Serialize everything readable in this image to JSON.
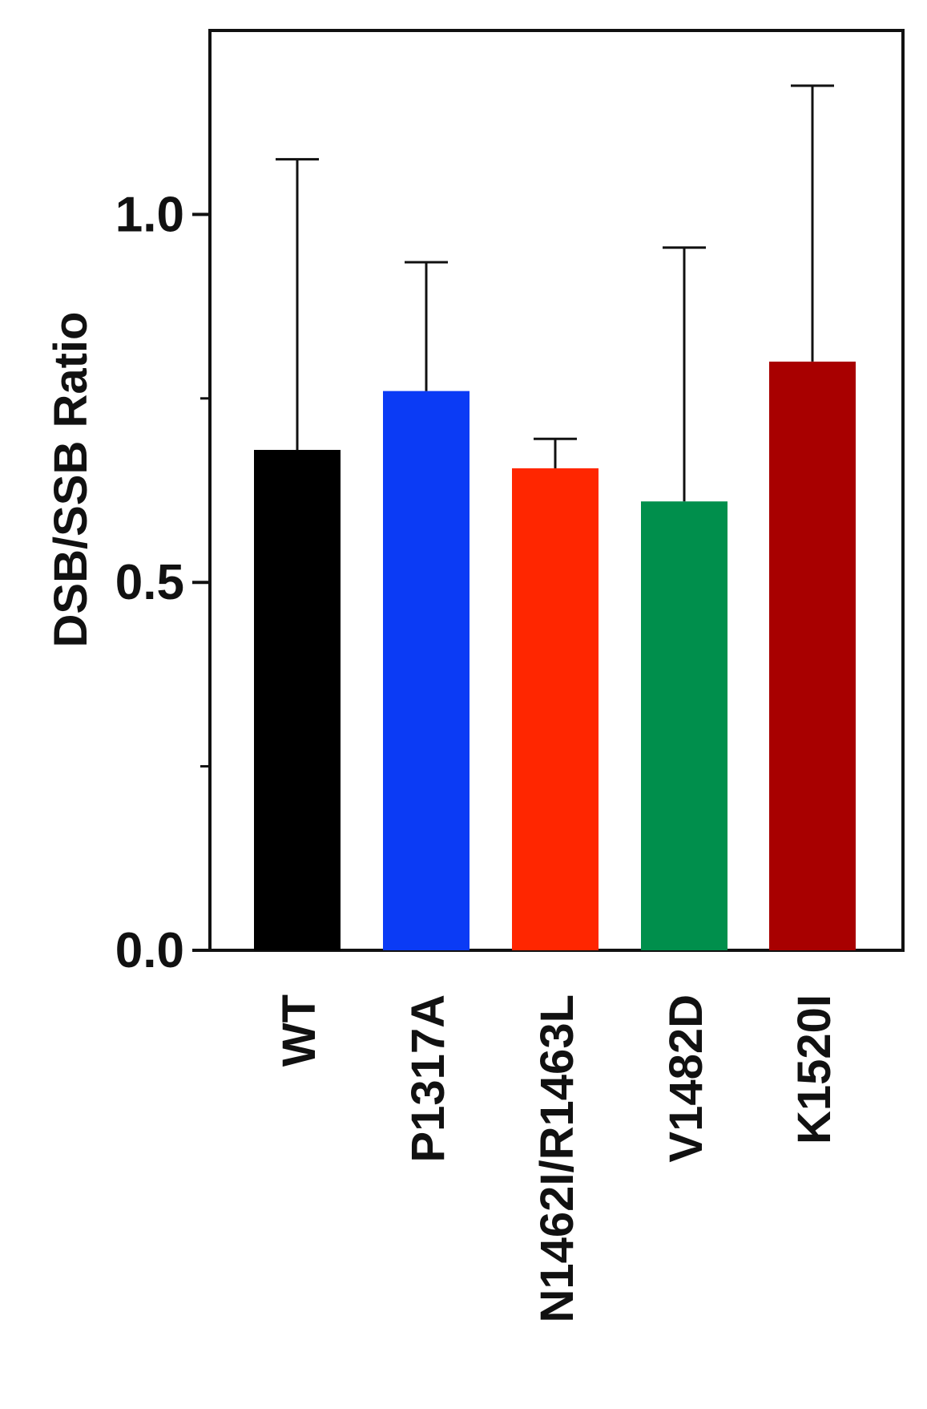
{
  "chart_data": {
    "type": "bar",
    "title": "",
    "xlabel": "",
    "ylabel": "DSB/SSB Ratio",
    "ylim": [
      0,
      1.25
    ],
    "yticks_major": [
      0.0,
      0.5,
      1.0
    ],
    "ytick_labels": [
      "0.0",
      "0.5",
      "1.0"
    ],
    "yticks_minor": [
      0.25,
      0.75
    ],
    "grid": false,
    "legend": "none",
    "categories": [
      "WT",
      "P1317A",
      "N1462I/R1463L",
      "V1482D",
      "K1520I"
    ],
    "values": [
      0.68,
      0.76,
      0.655,
      0.61,
      0.8
    ],
    "error_upper": [
      1.075,
      0.935,
      0.695,
      0.955,
      1.175
    ],
    "colors": [
      "#000000",
      "#0b3bf5",
      "#ff2600",
      "#008f4c",
      "#a80000"
    ]
  }
}
